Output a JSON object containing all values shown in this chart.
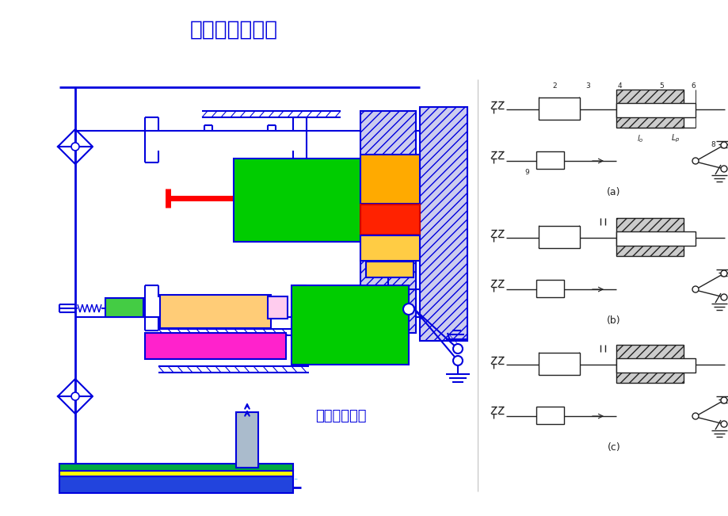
{
  "title": "模锻过程原理图",
  "subtitle": "平锻机上模锻",
  "bg_color": "#ffffff",
  "blue": "#0000dd",
  "green_block": "#00cc00",
  "orange_block": "#ffaa00",
  "red_block": "#ff2200",
  "magenta_block": "#ff22cc",
  "light_orange": "#ffcc77",
  "hatch_blue": "#aaaadd",
  "dark": "#222222",
  "labels_abc": [
    "(a)",
    "(b)",
    "(c)"
  ]
}
